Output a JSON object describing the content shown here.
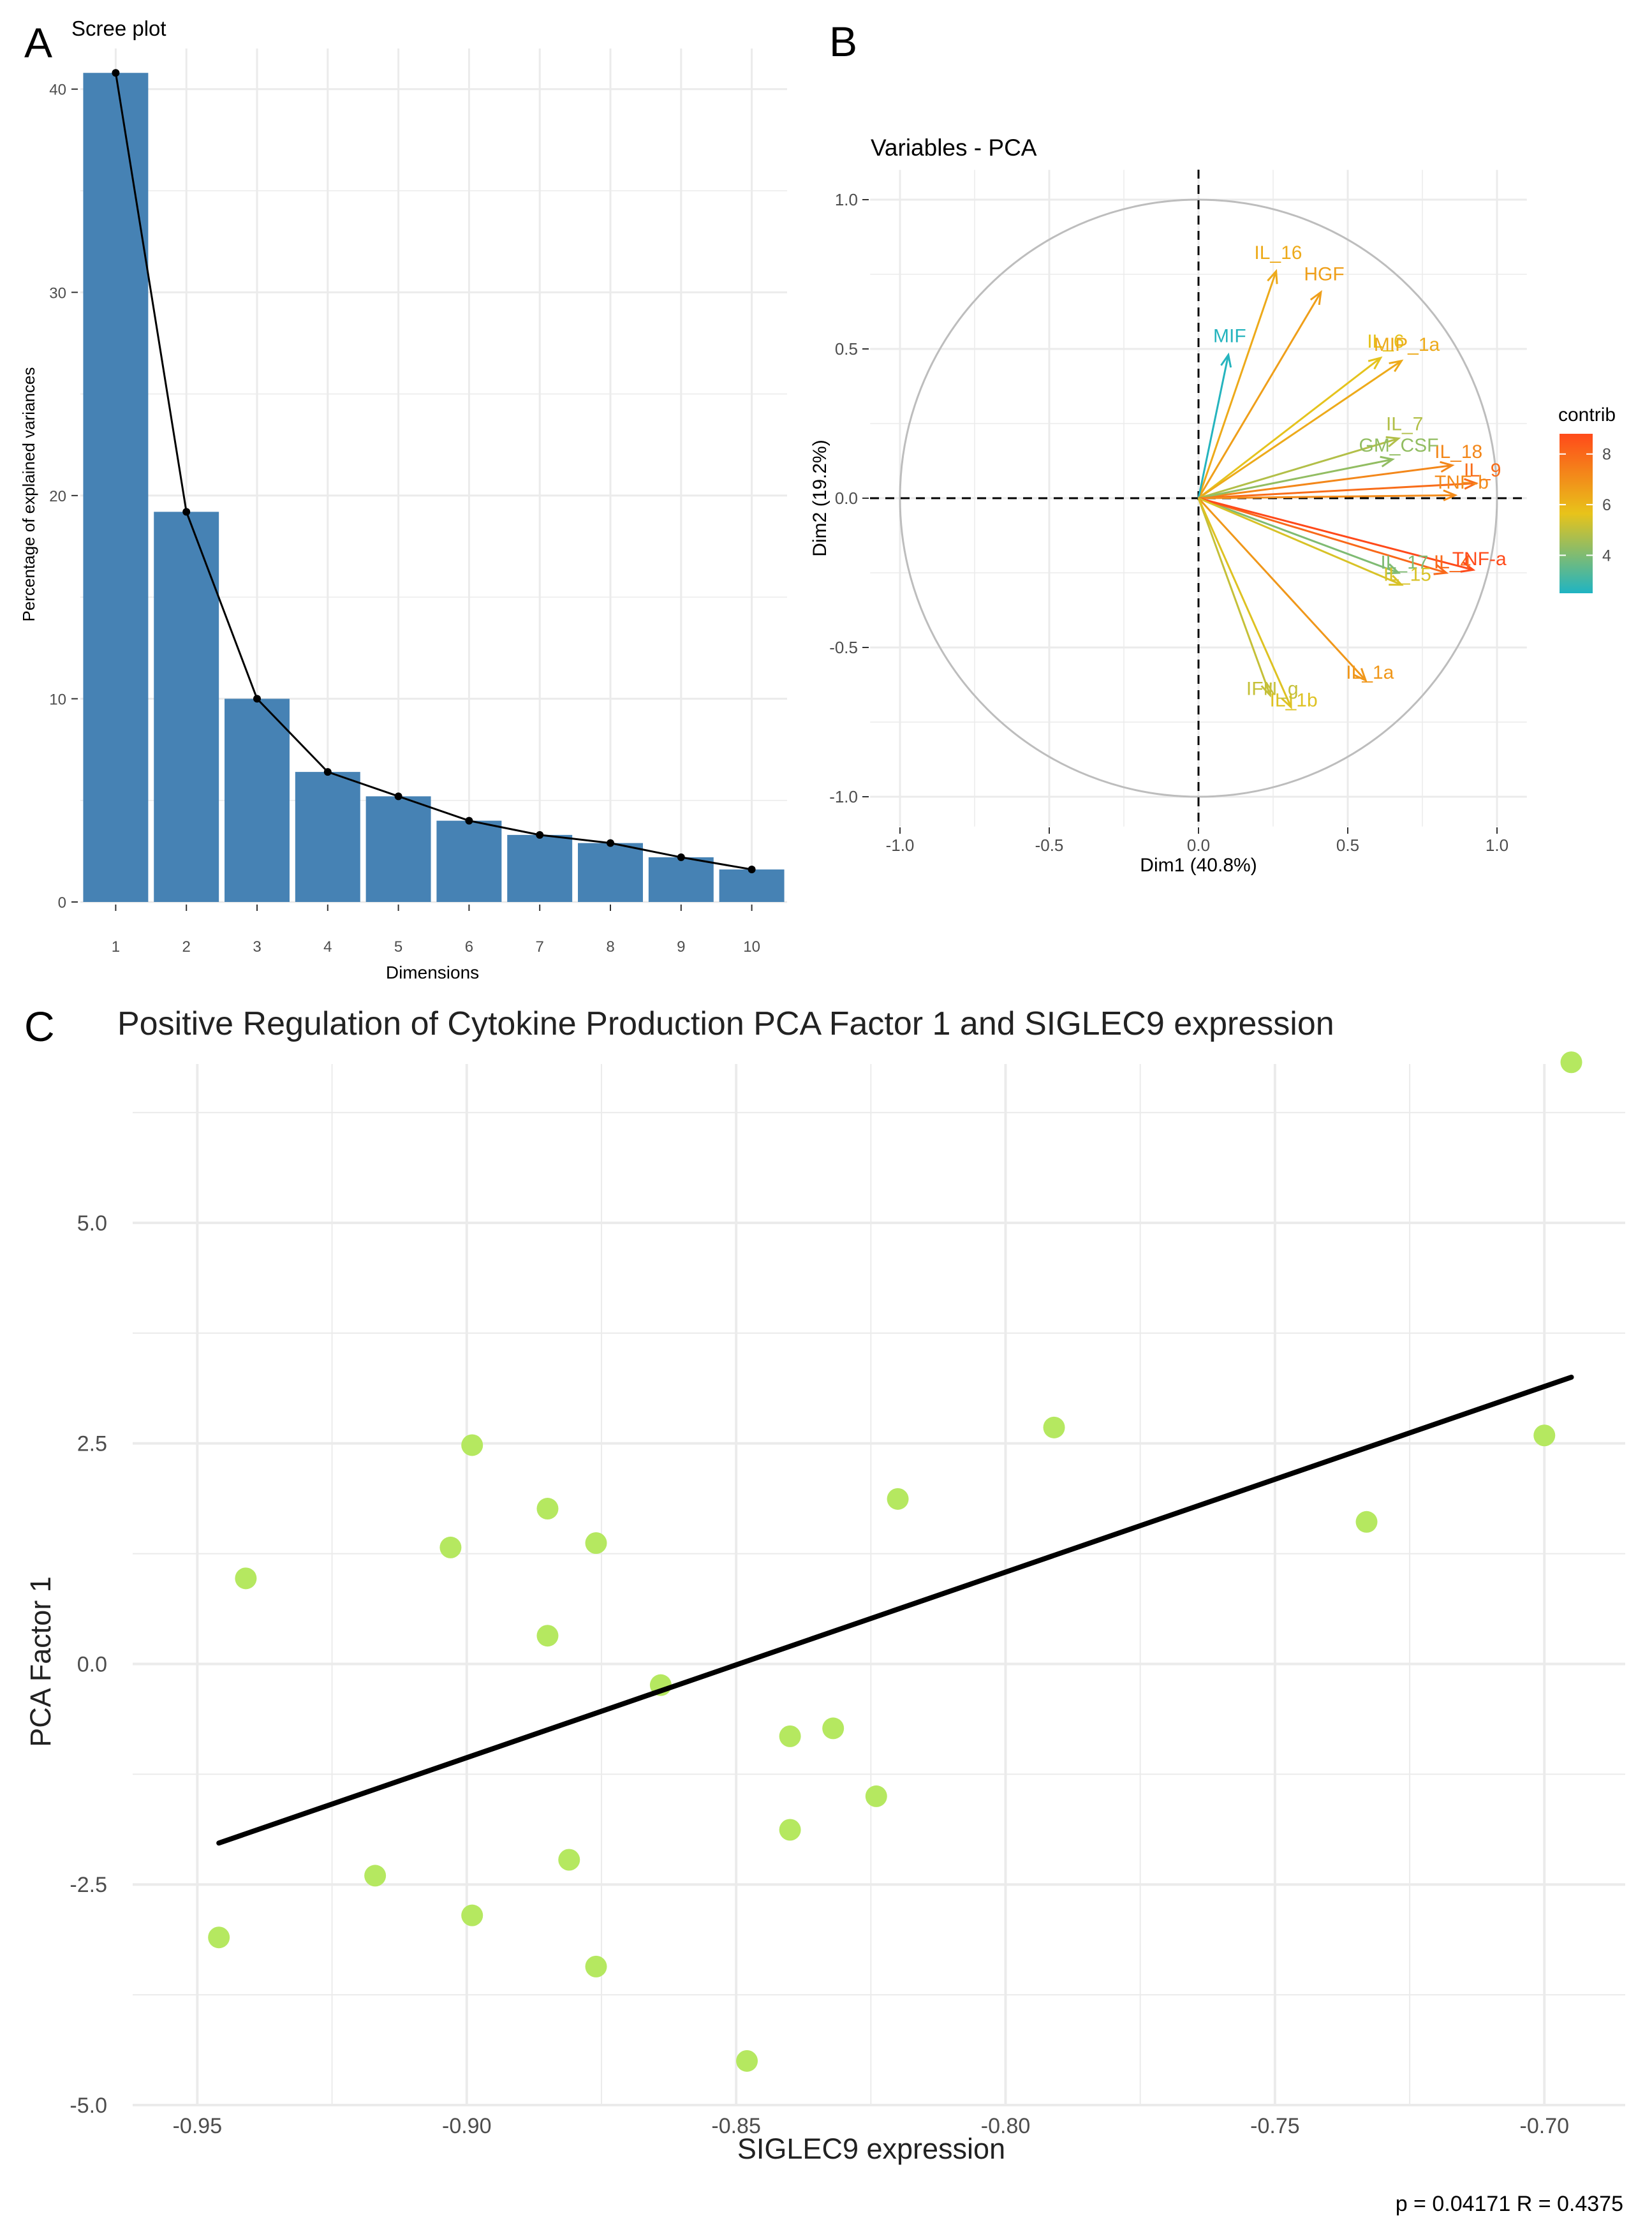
{
  "panels": {
    "a": "A",
    "b": "B",
    "c": "C"
  },
  "colors": {
    "bar": "#4682b4",
    "line": "#000000",
    "grid": "#ebebeb",
    "axis_text": "#4d4d4d",
    "circle": "#bdbdbd",
    "scatter_point": "#b5e860",
    "contrib_low": "#1fb4c3",
    "contrib_mid": "#e8c31a",
    "contrib_high": "#ff4a1a"
  },
  "chart_data": [
    {
      "id": "scree",
      "type": "bar",
      "title": "Scree plot",
      "xlabel": "Dimensions",
      "ylabel": "Percentage of explained variances",
      "categories": [
        "1",
        "2",
        "3",
        "4",
        "5",
        "6",
        "7",
        "8",
        "9",
        "10"
      ],
      "values": [
        40.8,
        19.2,
        10.0,
        6.4,
        5.2,
        4.0,
        3.3,
        2.9,
        2.2,
        1.6
      ],
      "line_overlay": true,
      "yticks": [
        0,
        10,
        20,
        30,
        40
      ],
      "ylim": [
        0,
        42
      ]
    },
    {
      "id": "pca_variables",
      "type": "scatter",
      "subtype": "pca-correlation-circle",
      "title": "Variables - PCA",
      "xlabel": "Dim1 (40.8%)",
      "ylabel": "Dim2 (19.2%)",
      "xlim": [
        -1.1,
        1.1
      ],
      "ylim": [
        -1.1,
        1.1
      ],
      "xticks": [
        "-1.0",
        "-0.5",
        "0.0",
        "0.5",
        "1.0"
      ],
      "yticks": [
        "-1.0",
        "-0.5",
        "0.0",
        "0.5",
        "1.0"
      ],
      "legend": {
        "title": "contrib",
        "range": [
          2.5,
          8.8
        ],
        "ticks": [
          4,
          6,
          8
        ],
        "position": "right"
      },
      "variables": [
        {
          "name": "IL_16",
          "x": 0.26,
          "y": 0.76,
          "contrib": 6.3
        },
        {
          "name": "HGF",
          "x": 0.41,
          "y": 0.69,
          "contrib": 6.6
        },
        {
          "name": "MIF",
          "x": 0.1,
          "y": 0.48,
          "contrib": 2.6
        },
        {
          "name": "IL_6",
          "x": 0.61,
          "y": 0.47,
          "contrib": 5.6
        },
        {
          "name": "MIP_1a",
          "x": 0.68,
          "y": 0.46,
          "contrib": 6.3
        },
        {
          "name": "IL_7",
          "x": 0.67,
          "y": 0.2,
          "contrib": 4.8
        },
        {
          "name": "IL_18",
          "x": 0.85,
          "y": 0.11,
          "contrib": 7.2
        },
        {
          "name": "GM_CSF",
          "x": 0.65,
          "y": 0.13,
          "contrib": 4.3
        },
        {
          "name": "IL_9",
          "x": 0.93,
          "y": 0.05,
          "contrib": 7.9
        },
        {
          "name": "TNF-b",
          "x": 0.86,
          "y": 0.01,
          "contrib": 7.1
        },
        {
          "name": "IL_17",
          "x": 0.67,
          "y": -0.25,
          "contrib": 4.0
        },
        {
          "name": "IL_4",
          "x": 0.83,
          "y": -0.25,
          "contrib": 8.0
        },
        {
          "name": "TNF-a",
          "x": 0.92,
          "y": -0.24,
          "contrib": 8.8
        },
        {
          "name": "IL_15",
          "x": 0.68,
          "y": -0.29,
          "contrib": 5.4
        },
        {
          "name": "IL_1a",
          "x": 0.56,
          "y": -0.61,
          "contrib": 6.8
        },
        {
          "name": "IFN_g",
          "x": 0.24,
          "y": -0.66,
          "contrib": 5.1
        },
        {
          "name": "IL_1b",
          "x": 0.31,
          "y": -0.7,
          "contrib": 5.5
        }
      ]
    },
    {
      "id": "siglec9_scatter",
      "type": "scatter",
      "title": "Positive Regulation of Cytokine Production PCA Factor 1 and SIGLEC9 expression",
      "xlabel": "SIGLEC9 expression",
      "ylabel": "PCA Factor 1",
      "xlim": [
        -0.962,
        -0.685
      ],
      "ylim": [
        -5.0,
        6.8
      ],
      "xticks": [
        "-0.95",
        "-0.90",
        "-0.85",
        "-0.80",
        "-0.75",
        "-0.70"
      ],
      "yticks": [
        "-5.0",
        "-2.5",
        "0.0",
        "2.5",
        "5.0"
      ],
      "points": [
        {
          "x": -0.946,
          "y": -3.1
        },
        {
          "x": -0.941,
          "y": 0.97
        },
        {
          "x": -0.917,
          "y": -2.4
        },
        {
          "x": -0.903,
          "y": 1.32
        },
        {
          "x": -0.899,
          "y": 2.48
        },
        {
          "x": -0.899,
          "y": -2.85
        },
        {
          "x": -0.885,
          "y": 1.76
        },
        {
          "x": -0.885,
          "y": 0.32
        },
        {
          "x": -0.881,
          "y": -2.22
        },
        {
          "x": -0.876,
          "y": 1.37
        },
        {
          "x": -0.876,
          "y": -3.43
        },
        {
          "x": -0.864,
          "y": -0.24
        },
        {
          "x": -0.848,
          "y": -4.5
        },
        {
          "x": -0.84,
          "y": -0.82
        },
        {
          "x": -0.84,
          "y": -1.88
        },
        {
          "x": -0.832,
          "y": -0.73
        },
        {
          "x": -0.824,
          "y": -1.5
        },
        {
          "x": -0.82,
          "y": 1.87
        },
        {
          "x": -0.791,
          "y": 2.68
        },
        {
          "x": -0.733,
          "y": 1.61
        },
        {
          "x": -0.7,
          "y": 2.59
        },
        {
          "x": -0.695,
          "y": 6.82
        }
      ],
      "regression": {
        "x": [
          -0.946,
          -0.695
        ],
        "y": [
          -2.03,
          3.25
        ]
      },
      "annotation": "p = 0.04171   R = 0.4375"
    }
  ]
}
